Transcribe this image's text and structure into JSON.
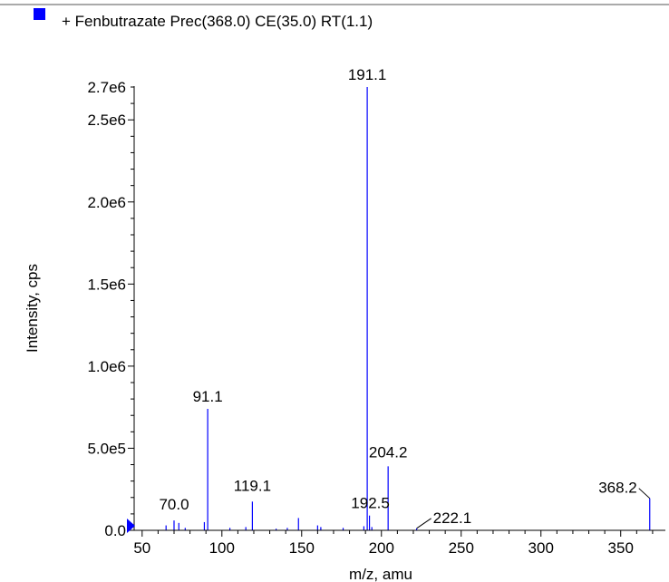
{
  "chart_data": {
    "type": "bar",
    "title": "+ Fenbutrazate Prec(368.0) CE(35.0) RT(1.1)",
    "xlabel": "m/z, amu",
    "ylabel": "Intensity, cps",
    "xlim": [
      45,
      378
    ],
    "ylim": [
      0,
      2700000.0
    ],
    "x_ticks": [
      50,
      100,
      150,
      200,
      250,
      300,
      350
    ],
    "x_tick_labels": [
      "50",
      "100",
      "150",
      "200",
      "250",
      "300",
      "350"
    ],
    "y_ticks": [
      0,
      500000,
      1000000,
      1500000,
      2000000,
      2500000,
      2700000
    ],
    "y_tick_labels": [
      "0.0",
      "5.0e5",
      "1.0e6",
      "1.5e6",
      "2.0e6",
      "2.5e6",
      "2.7e6"
    ],
    "series_color": "#0000ff",
    "legend_color": "#0000ff",
    "peaks": [
      {
        "mz": 65.0,
        "intensity": 30000
      },
      {
        "mz": 70.0,
        "intensity": 60000,
        "label": "70.0"
      },
      {
        "mz": 73.0,
        "intensity": 45000
      },
      {
        "mz": 77.0,
        "intensity": 15000
      },
      {
        "mz": 89.0,
        "intensity": 50000
      },
      {
        "mz": 91.1,
        "intensity": 740000,
        "label": "91.1"
      },
      {
        "mz": 105.0,
        "intensity": 15000
      },
      {
        "mz": 115.0,
        "intensity": 20000
      },
      {
        "mz": 119.1,
        "intensity": 175000,
        "label": "119.1"
      },
      {
        "mz": 134.0,
        "intensity": 10000
      },
      {
        "mz": 141.0,
        "intensity": 15000
      },
      {
        "mz": 148.0,
        "intensity": 75000
      },
      {
        "mz": 160.0,
        "intensity": 30000
      },
      {
        "mz": 162.0,
        "intensity": 20000
      },
      {
        "mz": 176.0,
        "intensity": 15000
      },
      {
        "mz": 189.0,
        "intensity": 25000
      },
      {
        "mz": 191.1,
        "intensity": 2700000,
        "label": "191.1"
      },
      {
        "mz": 192.5,
        "intensity": 90000,
        "label": "192.5"
      },
      {
        "mz": 194.0,
        "intensity": 20000
      },
      {
        "mz": 204.2,
        "intensity": 390000,
        "label": "204.2"
      },
      {
        "mz": 222.1,
        "intensity": 12000,
        "label": "222.1"
      },
      {
        "mz": 368.2,
        "intensity": 195000,
        "label": "368.2"
      }
    ]
  }
}
